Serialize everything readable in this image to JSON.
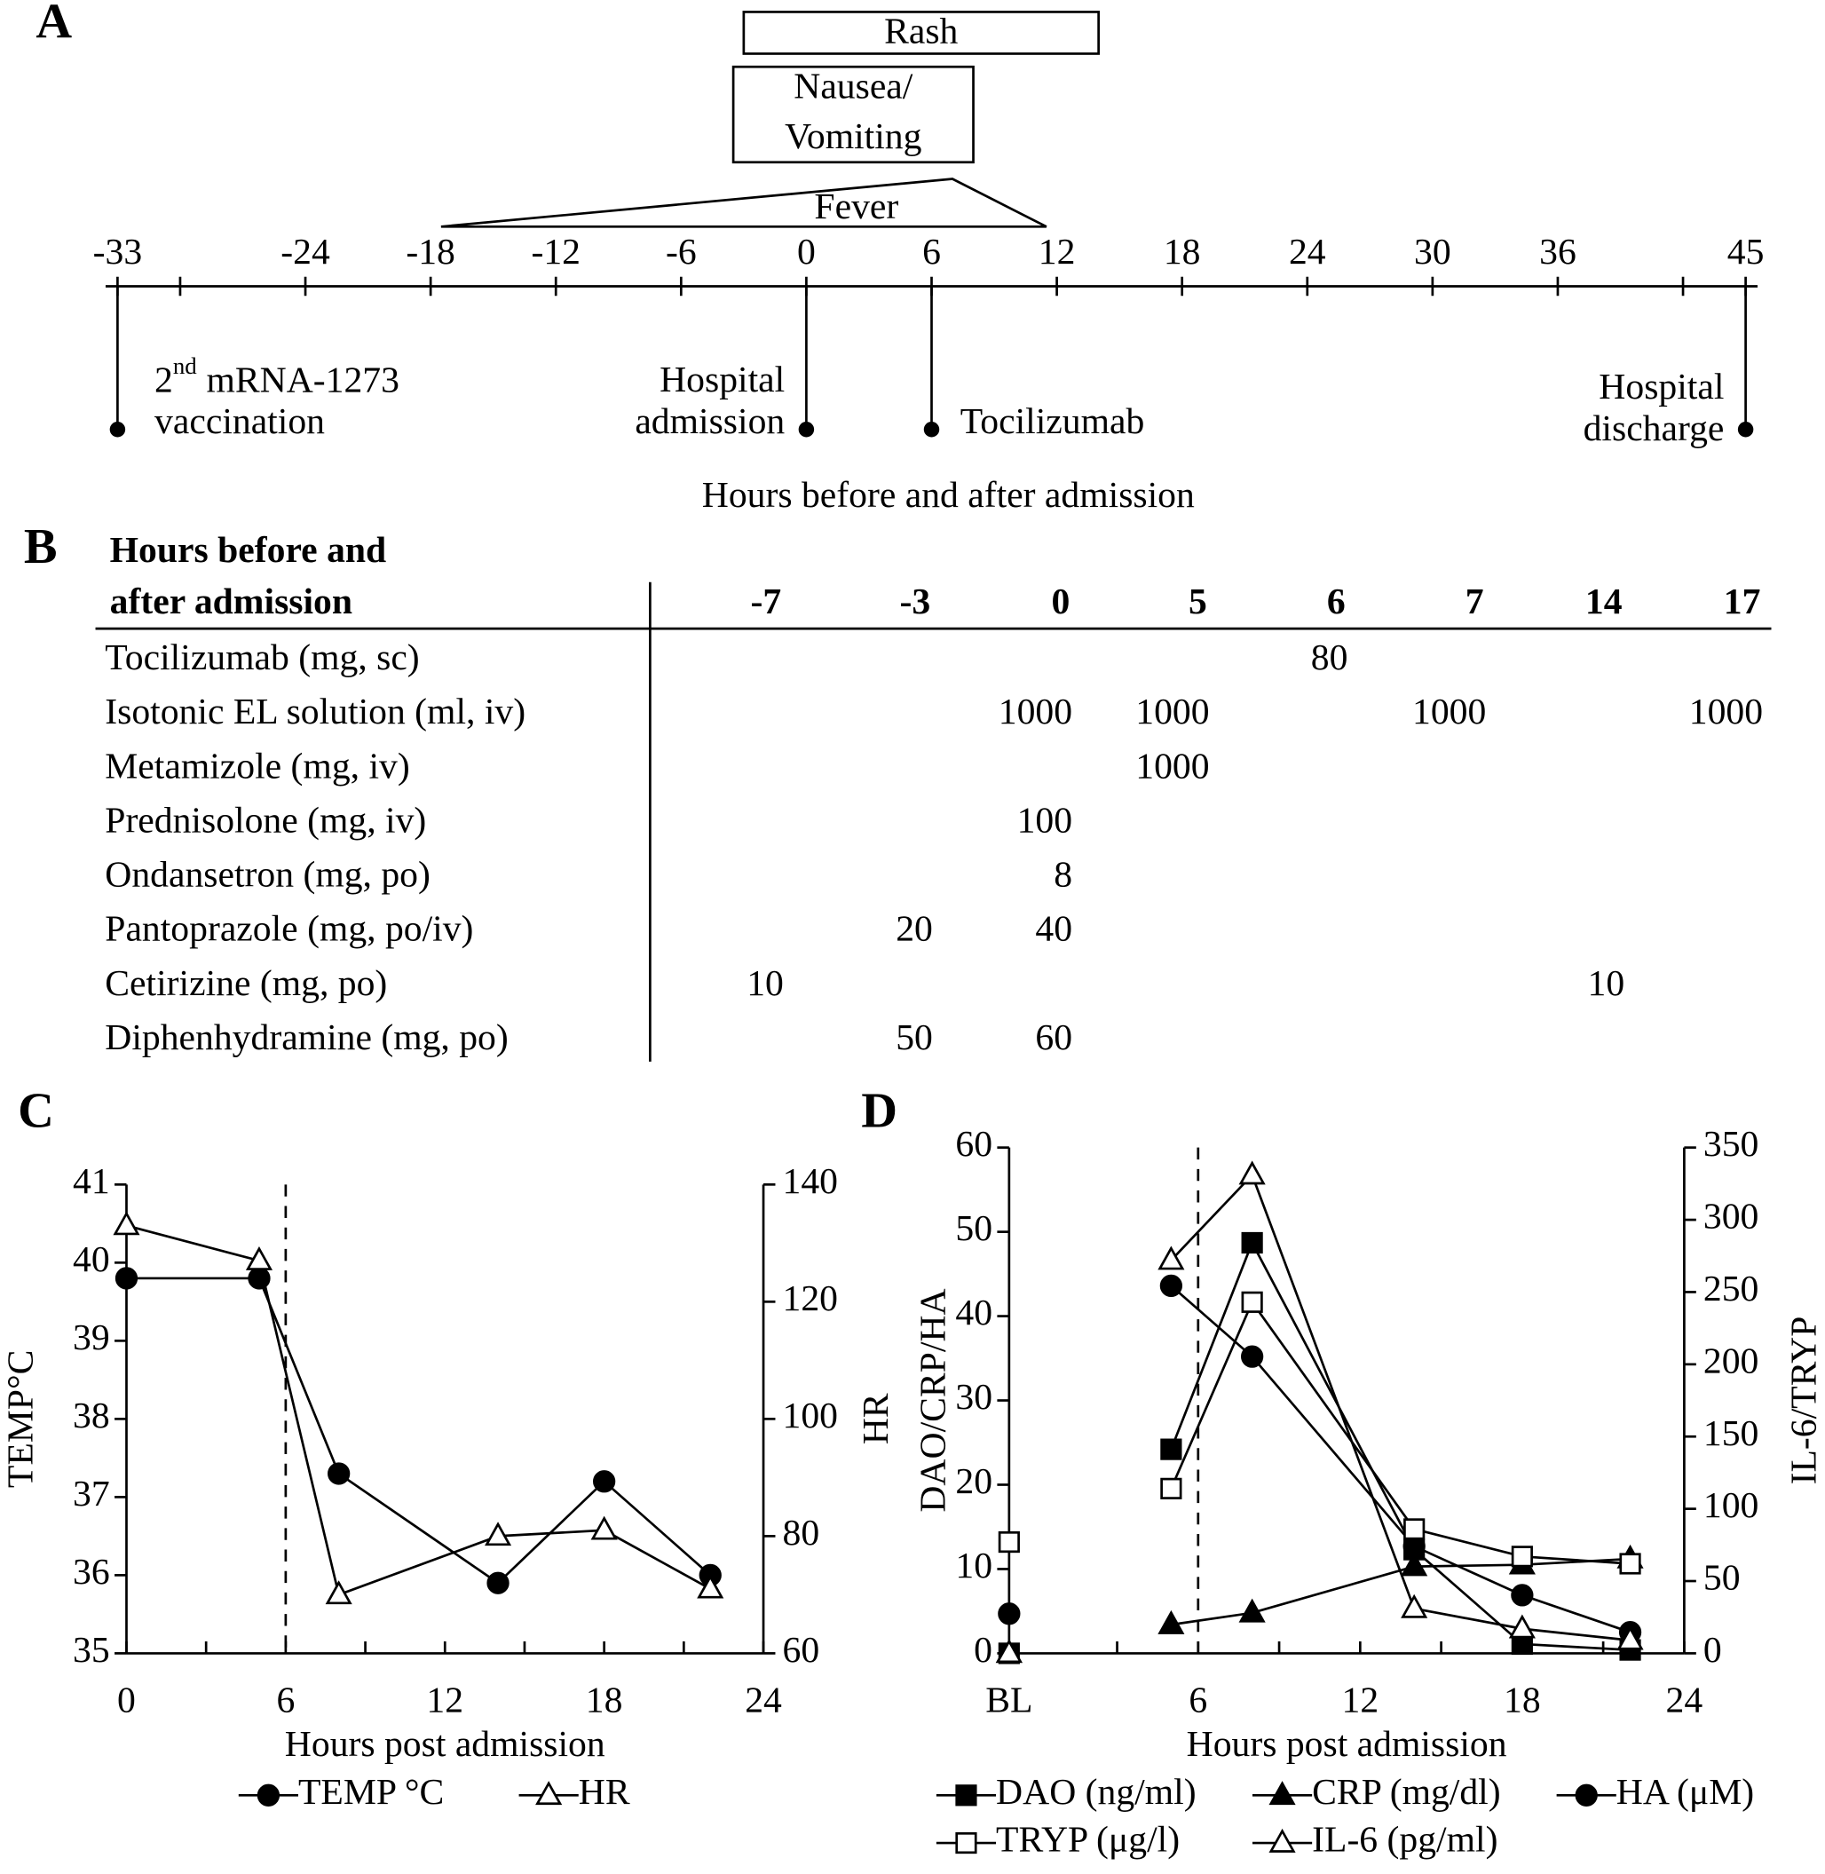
{
  "panel_a": {
    "label": "A",
    "rash": {
      "label": "Rash",
      "span": [
        -3,
        14
      ]
    },
    "nausea": {
      "lines": [
        "Nausea/",
        "Vomiting"
      ],
      "span": [
        -3.5,
        8
      ]
    },
    "fever": {
      "label": "Fever",
      "shape": [
        -17.5,
        7,
        11.5
      ]
    },
    "axis": {
      "xlim": [
        -33,
        45
      ],
      "ticks": [
        -33,
        -24,
        -18,
        -12,
        -6,
        0,
        6,
        12,
        18,
        24,
        30,
        36,
        45
      ],
      "minor_ticks": [
        -30,
        42
      ],
      "title": "Hours before and after admission"
    },
    "events": [
      {
        "hour": -33,
        "prefix": "2",
        "prefix_sup": "nd",
        "lines": [
          "mRNA-1273",
          "vaccination"
        ],
        "align": "left"
      },
      {
        "hour": 0,
        "lines": [
          "Hospital",
          "admission"
        ],
        "align": "right"
      },
      {
        "hour": 6,
        "lines": [
          "Tocilizumab"
        ],
        "align": "left"
      },
      {
        "hour": 45,
        "lines": [
          "Hospital",
          "discharge"
        ],
        "align": "right"
      }
    ]
  },
  "panel_b": {
    "label": "B",
    "header": [
      "Hours before and",
      "after admission"
    ],
    "columns": [
      -7,
      -3,
      0,
      5,
      6,
      7,
      14,
      17
    ],
    "rows": [
      {
        "name": "Tocilizumab (mg, sc)",
        "cells": [
          null,
          null,
          null,
          null,
          80,
          null,
          null,
          null
        ]
      },
      {
        "name": "Isotonic EL solution (ml, iv)",
        "cells": [
          null,
          null,
          1000,
          1000,
          null,
          1000,
          null,
          1000
        ]
      },
      {
        "name": "Metamizole (mg, iv)",
        "cells": [
          null,
          null,
          null,
          1000,
          null,
          null,
          null,
          null
        ]
      },
      {
        "name": "Prednisolone (mg, iv)",
        "cells": [
          null,
          null,
          100,
          null,
          null,
          null,
          null,
          null
        ]
      },
      {
        "name": "Ondansetron (mg, po)",
        "cells": [
          null,
          null,
          8,
          null,
          null,
          null,
          null,
          null
        ]
      },
      {
        "name": "Pantoprazole (mg, po/iv)",
        "cells": [
          null,
          20,
          40,
          null,
          null,
          null,
          null,
          null
        ]
      },
      {
        "name": "Cetirizine (mg, po)",
        "cells": [
          10,
          null,
          null,
          null,
          null,
          null,
          10,
          null
        ]
      },
      {
        "name": "Diphenhydramine (mg, po)",
        "cells": [
          null,
          50,
          60,
          null,
          null,
          null,
          null,
          null
        ]
      }
    ]
  },
  "chart_data": [
    {
      "type": "line",
      "label": "C",
      "x_label": "Hours post admission",
      "y_label": "TEMP°C",
      "y2_label": "HR",
      "xlim": [
        0,
        24
      ],
      "xticks": [
        0,
        6,
        12,
        18,
        24
      ],
      "x_minor_ticks": [
        3,
        9,
        15,
        21
      ],
      "ylim": [
        35,
        41
      ],
      "yticks": [
        35,
        36,
        37,
        38,
        39,
        40,
        41
      ],
      "y2lim": [
        60,
        140
      ],
      "y2ticks": [
        60,
        80,
        100,
        120,
        140
      ],
      "reference_x": 6,
      "x": [
        0,
        5,
        8,
        14,
        18,
        22
      ],
      "series": [
        {
          "name": "TEMP °C",
          "color": "#000000",
          "marker": "circle",
          "filled": true,
          "values": [
            39.8,
            39.8,
            37.3,
            35.9,
            37.2,
            36.0
          ]
        },
        {
          "name": "HR",
          "axis": "y2",
          "color": "#000000",
          "marker": "triangle",
          "filled": false,
          "values": [
            133,
            127,
            70,
            80,
            81,
            71
          ]
        }
      ]
    },
    {
      "type": "line",
      "label": "D",
      "x_label": "Hours post admission",
      "y_label": "DAO/CRP/HA",
      "y2_label": "IL-6/TRYP",
      "xlim": [
        -1,
        24
      ],
      "xticks": [
        {
          "value": -1,
          "label": "BL"
        },
        6,
        12,
        18,
        24
      ],
      "x_minor_ticks": [
        3,
        9,
        15,
        21
      ],
      "ylim": [
        0,
        60
      ],
      "yticks": [
        0,
        10,
        20,
        30,
        40,
        50,
        60
      ],
      "y2lim": [
        0,
        350
      ],
      "y2ticks": [
        0,
        50,
        100,
        150,
        200,
        250,
        300,
        350
      ],
      "reference_x": 6,
      "baseline_x": -1,
      "x": [
        5,
        8,
        14,
        18,
        22
      ],
      "series": [
        {
          "name": "DAO (ng/ml)",
          "color": "#000000",
          "marker": "square",
          "filled": true,
          "baseline": 0,
          "values": [
            24.2,
            48.7,
            12.3,
            1.1,
            0.4
          ]
        },
        {
          "name": "CRP (mg/dl)",
          "color": "#000000",
          "marker": "triangle",
          "filled": true,
          "baseline": 0,
          "values": [
            3.4,
            4.8,
            10.3,
            10.5,
            11.2
          ]
        },
        {
          "name": "HA (μM)",
          "color": "#000000",
          "marker": "circle",
          "filled": true,
          "baseline": 4.7,
          "values": [
            43.6,
            35.2,
            12.7,
            6.9,
            2.5
          ]
        },
        {
          "name": "TRYP (μg/l)",
          "axis": "y2",
          "color": "#000000",
          "marker": "square",
          "filled": false,
          "baseline": 77,
          "values": [
            114,
            243,
            86,
            67,
            62
          ]
        },
        {
          "name": "IL-6 (pg/ml)",
          "axis": "y2",
          "color": "#000000",
          "marker": "triangle",
          "filled": false,
          "baseline": 0,
          "values": [
            272,
            331,
            31,
            17,
            9
          ]
        }
      ]
    }
  ]
}
